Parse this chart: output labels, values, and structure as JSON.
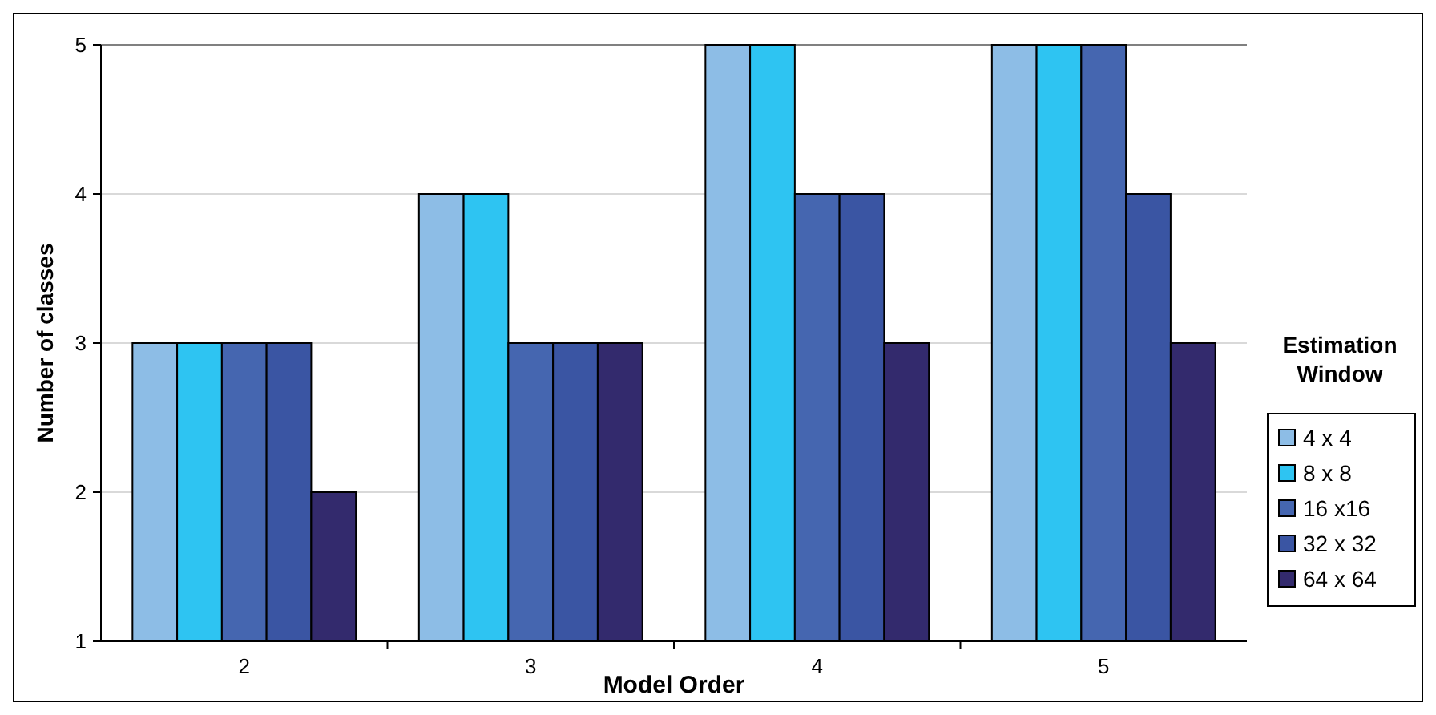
{
  "chart_data": {
    "type": "bar",
    "xlabel": "Model Order",
    "ylabel": "Number of classes",
    "legend_title": "Estimation Window",
    "categories": [
      "2",
      "3",
      "4",
      "5"
    ],
    "series": [
      {
        "name": "4 x 4",
        "color": "#8dbde6",
        "values": [
          3,
          4,
          5,
          5
        ]
      },
      {
        "name": "8 x 8",
        "color": "#2ec4f2",
        "values": [
          3,
          4,
          5,
          5
        ]
      },
      {
        "name": "16 x16",
        "color": "#4566b0",
        "values": [
          3,
          3,
          4,
          5
        ]
      },
      {
        "name": "32 x 32",
        "color": "#3a55a3",
        "values": [
          3,
          3,
          4,
          4
        ]
      },
      {
        "name": "64 x 64",
        "color": "#332a6d",
        "values": [
          2,
          3,
          3,
          3
        ]
      }
    ],
    "ylim": [
      1,
      5
    ],
    "yticks": [
      1,
      2,
      3,
      4,
      5
    ],
    "grid": "y",
    "legend": "right"
  }
}
